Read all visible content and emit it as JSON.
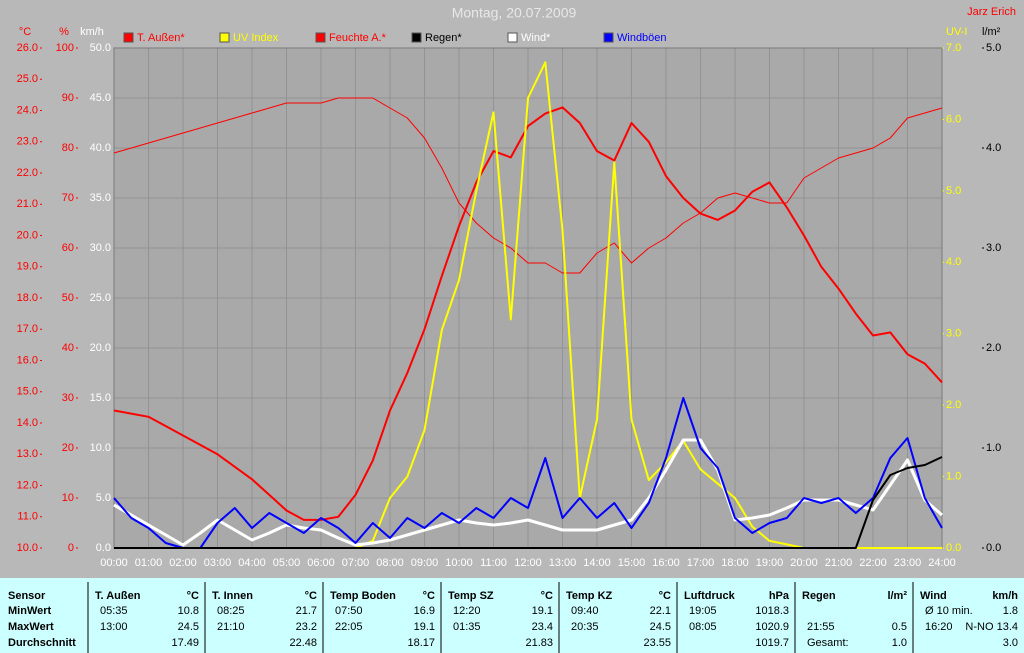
{
  "chart_data": {
    "type": "line",
    "title": "Montag, 20.07.2009",
    "author": "Jarz Erich",
    "grid": true,
    "xlim": [
      0,
      24
    ],
    "xticks": [
      {
        "value": 0,
        "label": "00:00"
      },
      {
        "value": 1,
        "label": "01:00"
      },
      {
        "value": 2,
        "label": "02:00"
      },
      {
        "value": 3,
        "label": "03:00"
      },
      {
        "value": 4,
        "label": "04:00"
      },
      {
        "value": 5,
        "label": "05:00"
      },
      {
        "value": 6,
        "label": "06:00"
      },
      {
        "value": 7,
        "label": "07:00"
      },
      {
        "value": 8,
        "label": "08:00"
      },
      {
        "value": 9,
        "label": "09:00"
      },
      {
        "value": 10,
        "label": "10:00"
      },
      {
        "value": 11,
        "label": "11:00"
      },
      {
        "value": 12,
        "label": "12:00"
      },
      {
        "value": 13,
        "label": "13:00"
      },
      {
        "value": 14,
        "label": "14:00"
      },
      {
        "value": 15,
        "label": "15:00"
      },
      {
        "value": 16,
        "label": "16:00"
      },
      {
        "value": 17,
        "label": "17:00"
      },
      {
        "value": 18,
        "label": "18:00"
      },
      {
        "value": 19,
        "label": "19:00"
      },
      {
        "value": 20,
        "label": "20:00"
      },
      {
        "value": 21,
        "label": "21:00"
      },
      {
        "value": 22,
        "label": "22:00"
      },
      {
        "value": 23,
        "label": "23:00"
      },
      {
        "value": 24,
        "label": "24:00"
      }
    ],
    "x": [
      0,
      0.5,
      1,
      1.5,
      2,
      2.5,
      3,
      3.5,
      4,
      4.5,
      5,
      5.5,
      6,
      6.5,
      7,
      7.5,
      8,
      8.5,
      9,
      9.5,
      10,
      10.5,
      11,
      11.5,
      12,
      12.5,
      13,
      13.5,
      14,
      14.5,
      15,
      15.5,
      16,
      16.5,
      17,
      17.5,
      18,
      18.5,
      19,
      19.5,
      20,
      20.5,
      21,
      21.5,
      22,
      22.5,
      23,
      23.5,
      24
    ],
    "axes": [
      {
        "label": "°C",
        "color": "#ff0000",
        "lim": [
          10,
          26
        ],
        "ticks": [
          {
            "value": 10,
            "label": "10.0"
          },
          {
            "value": 11,
            "label": "11.0"
          },
          {
            "value": 12,
            "label": "12.0"
          },
          {
            "value": 13,
            "label": "13.0"
          },
          {
            "value": 14,
            "label": "14.0"
          },
          {
            "value": 15,
            "label": "15.0"
          },
          {
            "value": 16,
            "label": "16.0"
          },
          {
            "value": 17,
            "label": "17.0"
          },
          {
            "value": 18,
            "label": "18.0"
          },
          {
            "value": 19,
            "label": "19.0"
          },
          {
            "value": 20,
            "label": "20.0"
          },
          {
            "value": 21,
            "label": "21.0"
          },
          {
            "value": 22,
            "label": "22.0"
          },
          {
            "value": 23,
            "label": "23.0"
          },
          {
            "value": 24,
            "label": "24.0"
          },
          {
            "value": 25,
            "label": "25.0"
          },
          {
            "value": 26,
            "label": "26.0"
          }
        ]
      },
      {
        "label": "%",
        "color": "#ff0000",
        "lim": [
          0,
          100
        ],
        "ticks": [
          0,
          10,
          20,
          30,
          40,
          50,
          60,
          70,
          80,
          90,
          100
        ]
      },
      {
        "label": "km/h",
        "color": "#ffffff",
        "grid": true,
        "lim": [
          0,
          50
        ],
        "ticks": [
          {
            "value": 0,
            "label": "0.0"
          },
          {
            "value": 5,
            "label": "5.0"
          },
          {
            "value": 10,
            "label": "10.0"
          },
          {
            "value": 15,
            "label": "15.0"
          },
          {
            "value": 20,
            "label": "20.0"
          },
          {
            "value": 25,
            "label": "25.0"
          },
          {
            "value": 30,
            "label": "30.0"
          },
          {
            "value": 35,
            "label": "35.0"
          },
          {
            "value": 40,
            "label": "40.0"
          },
          {
            "value": 45,
            "label": "45.0"
          },
          {
            "value": 50,
            "label": "50.0"
          }
        ]
      },
      {
        "label": "UV-I",
        "color": "#ffff00",
        "lim": [
          0,
          7
        ],
        "ticks": [
          {
            "value": 0,
            "label": "0.0"
          },
          {
            "value": 1,
            "label": "1.0"
          },
          {
            "value": 2,
            "label": "2.0"
          },
          {
            "value": 3,
            "label": "3.0"
          },
          {
            "value": 4,
            "label": "4.0"
          },
          {
            "value": 5,
            "label": "5.0"
          },
          {
            "value": 6,
            "label": "6.0"
          },
          {
            "value": 7,
            "label": "7.0"
          }
        ]
      },
      {
        "label": "l/m²",
        "color": "#000000",
        "lim": [
          0,
          5
        ],
        "ticks": [
          {
            "value": 0,
            "label": "0.0"
          },
          {
            "value": 1,
            "label": "1.0"
          },
          {
            "value": 2,
            "label": "2.0"
          },
          {
            "value": 3,
            "label": "3.0"
          },
          {
            "value": 4,
            "label": "4.0"
          },
          {
            "value": 5,
            "label": "5.0"
          }
        ]
      }
    ],
    "series": [
      {
        "name": "T. Außen*",
        "color": "#ff0000",
        "width": 2,
        "axis": 0,
        "values": [
          14.4,
          14.3,
          14.2,
          13.9,
          13.6,
          13.3,
          13.0,
          12.6,
          12.2,
          11.7,
          11.2,
          10.9,
          10.9,
          11.0,
          11.7,
          12.8,
          14.4,
          15.6,
          17.0,
          18.7,
          20.3,
          21.7,
          22.7,
          22.5,
          23.5,
          23.9,
          24.1,
          23.6,
          22.7,
          22.4,
          23.6,
          23.0,
          21.9,
          21.2,
          20.7,
          20.5,
          20.8,
          21.4,
          21.7,
          20.9,
          20.0,
          19.0,
          18.3,
          17.5,
          16.8,
          16.9,
          16.2,
          15.9,
          15.3
        ]
      },
      {
        "name": "UV Index",
        "color": "#ffff00",
        "width": 2,
        "axis": 3,
        "values": [
          0,
          0,
          0,
          0,
          0,
          0,
          0,
          0,
          0,
          0,
          0,
          0,
          0,
          0,
          0,
          0.1,
          0.7,
          1.0,
          1.65,
          3.05,
          3.75,
          5.0,
          6.1,
          3.2,
          6.3,
          6.8,
          4.45,
          0.7,
          1.8,
          5.4,
          1.8,
          0.95,
          1.2,
          1.5,
          1.1,
          0.9,
          0.7,
          0.3,
          0.1,
          0.05,
          0,
          0,
          0,
          0,
          0,
          0,
          0,
          0,
          0
        ]
      },
      {
        "name": "Feuchte A.*",
        "color": "#ff0000",
        "width": 1,
        "axis": 1,
        "values": [
          79,
          80,
          81,
          82,
          83,
          84,
          85,
          86,
          87,
          88,
          89,
          89,
          89,
          90,
          90,
          90,
          88,
          86,
          82,
          76,
          69,
          65,
          62,
          60,
          57,
          57,
          55,
          55,
          59,
          61,
          57,
          60,
          62,
          65,
          67,
          70,
          71,
          70,
          69,
          69,
          74,
          76,
          78,
          79,
          80,
          82,
          86,
          87,
          88
        ]
      },
      {
        "name": "Regen*",
        "color": "#000000",
        "width": 2,
        "axis": 4,
        "values": [
          0,
          0,
          0,
          0,
          0,
          0,
          0,
          0,
          0,
          0,
          0,
          0,
          0,
          0,
          0,
          0,
          0,
          0,
          0,
          0,
          0,
          0,
          0,
          0,
          0,
          0,
          0,
          0,
          0,
          0,
          0,
          0,
          0,
          0,
          0,
          0,
          0,
          0,
          0,
          0,
          0,
          0,
          0,
          0,
          0.48,
          0.73,
          0.8,
          0.83,
          0.91
        ]
      },
      {
        "name": "Wind*",
        "color": "#ffffff",
        "width": 3,
        "axis": 2,
        "values": [
          4.3,
          3.3,
          2.3,
          1.3,
          0.3,
          1.5,
          2.8,
          1.8,
          0.8,
          1.5,
          2.3,
          2.0,
          1.8,
          1.0,
          0.3,
          0.5,
          0.8,
          1.3,
          1.8,
          2.3,
          2.8,
          2.5,
          2.3,
          2.5,
          2.8,
          2.3,
          1.8,
          1.8,
          1.8,
          2.3,
          2.8,
          5.0,
          7.8,
          10.8,
          10.8,
          7.8,
          2.8,
          3.0,
          3.3,
          4.0,
          4.8,
          4.8,
          4.8,
          4.3,
          3.8,
          6.3,
          8.8,
          4.8,
          3.3
        ]
      },
      {
        "name": "Windböen",
        "color": "#0000ff",
        "width": 2,
        "axis": 2,
        "values": [
          5.0,
          3.0,
          2.0,
          0.5,
          0,
          0,
          2.5,
          4.0,
          2.0,
          3.5,
          2.5,
          1.5,
          3.0,
          2.0,
          0.5,
          2.5,
          1.0,
          3.0,
          2.0,
          3.5,
          2.5,
          4.0,
          3.0,
          5.0,
          4.0,
          9.0,
          3.0,
          5.0,
          3.0,
          4.5,
          2.0,
          4.5,
          9.0,
          15.0,
          10.0,
          8.0,
          3.0,
          1.5,
          2.5,
          3.0,
          5.0,
          4.5,
          5.0,
          3.5,
          5.0,
          9.0,
          11.0,
          5.0,
          2.0
        ]
      }
    ]
  },
  "table": {
    "row_labels": [
      "Sensor",
      "MinWert",
      "MaxWert",
      "Durchschnitt"
    ],
    "groups": [
      {
        "name": "T. Außen",
        "unit": "°C",
        "rows": [
          {
            "time": "05:35",
            "value": "10.8"
          },
          {
            "time": "13:00",
            "value": "24.5"
          },
          {
            "value": "17.49"
          }
        ]
      },
      {
        "name": "T. Innen",
        "unit": "°C",
        "rows": [
          {
            "time": "08:25",
            "value": "21.7"
          },
          {
            "time": "21:10",
            "value": "23.2"
          },
          {
            "value": "22.48"
          }
        ]
      },
      {
        "name": "Temp Boden",
        "unit": "°C",
        "rows": [
          {
            "time": "07:50",
            "value": "16.9"
          },
          {
            "time": "22:05",
            "value": "19.1"
          },
          {
            "value": "18.17"
          }
        ]
      },
      {
        "name": "Temp SZ",
        "unit": "°C",
        "rows": [
          {
            "time": "12:20",
            "value": "19.1"
          },
          {
            "time": "01:35",
            "value": "23.4"
          },
          {
            "value": "21.83"
          }
        ]
      },
      {
        "name": "Temp KZ",
        "unit": "°C",
        "rows": [
          {
            "time": "09:40",
            "value": "22.1"
          },
          {
            "time": "20:35",
            "value": "24.5"
          },
          {
            "value": "23.55"
          }
        ]
      },
      {
        "name": "Luftdruck",
        "unit": "hPa",
        "rows": [
          {
            "time": "19:05",
            "value": "1018.3"
          },
          {
            "time": "08:05",
            "value": "1020.9"
          },
          {
            "value": "1019.7"
          }
        ]
      },
      {
        "name": "Regen",
        "unit": "l/m²",
        "rows": [
          null,
          {
            "time": "21:55",
            "value": "0.5"
          },
          {
            "time": "Gesamt:",
            "value": "1.0"
          }
        ]
      },
      {
        "name": "Wind",
        "unit": "km/h",
        "rows": [
          {
            "time": "Ø 10 min.",
            "value": "1.8"
          },
          {
            "time": "16:20",
            "value": "N-NO 13.4"
          },
          {
            "value": "3.0"
          }
        ]
      }
    ]
  }
}
